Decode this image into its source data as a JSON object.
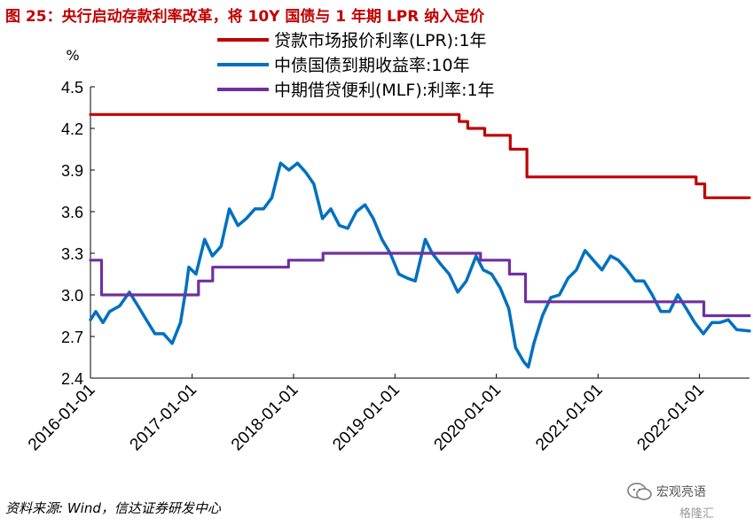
{
  "title": "图 25：央行启动存款利率改革，将 10Y 国债与 1 年期 LPR 纳入定价",
  "footer": "资料来源: Wind，信达证券研发中心",
  "watermark": {
    "line1": "宏观亮语",
    "line2": "格隆汇",
    "icon": "wechat-icon"
  },
  "chart_data": {
    "type": "line",
    "title": "",
    "xlabel": "",
    "ylabel": "%",
    "ylim": [
      2.4,
      4.5
    ],
    "yticks": [
      2.4,
      2.7,
      3.0,
      3.3,
      3.6,
      3.9,
      4.2,
      4.5
    ],
    "ytick_labels": [
      "2.4",
      "2.7",
      "3.0",
      "3.3",
      "3.6",
      "3.9",
      "4.2",
      "4.5"
    ],
    "xlim": [
      "2016-01-01",
      "2022-06-30"
    ],
    "xticks": [
      "2016-01-01",
      "2017-01-01",
      "2018-01-01",
      "2019-01-01",
      "2020-01-01",
      "2021-01-01",
      "2022-01-01"
    ],
    "grid": false,
    "legend_position": "top",
    "series": [
      {
        "name": "贷款市场报价利率(LPR):1年",
        "color": "#c00000",
        "step": true,
        "points": [
          [
            "2016-01-01",
            4.3
          ],
          [
            "2019-08-20",
            4.25
          ],
          [
            "2019-09-20",
            4.2
          ],
          [
            "2019-11-20",
            4.15
          ],
          [
            "2020-02-20",
            4.05
          ],
          [
            "2020-04-20",
            3.85
          ],
          [
            "2021-12-20",
            3.8
          ],
          [
            "2022-01-20",
            3.7
          ],
          [
            "2022-06-30",
            3.7
          ]
        ]
      },
      {
        "name": "中债国债到期收益率:10年",
        "color": "#0070c0",
        "step": false,
        "points": [
          [
            "2016-01-01",
            2.82
          ],
          [
            "2016-01-20",
            2.88
          ],
          [
            "2016-02-15",
            2.8
          ],
          [
            "2016-03-10",
            2.88
          ],
          [
            "2016-04-15",
            2.92
          ],
          [
            "2016-05-20",
            3.02
          ],
          [
            "2016-06-20",
            2.92
          ],
          [
            "2016-07-20",
            2.82
          ],
          [
            "2016-08-20",
            2.72
          ],
          [
            "2016-09-20",
            2.72
          ],
          [
            "2016-10-21",
            2.65
          ],
          [
            "2016-11-20",
            2.8
          ],
          [
            "2016-12-10",
            3.05
          ],
          [
            "2016-12-20",
            3.2
          ],
          [
            "2017-01-15",
            3.15
          ],
          [
            "2017-02-15",
            3.4
          ],
          [
            "2017-03-15",
            3.28
          ],
          [
            "2017-04-15",
            3.35
          ],
          [
            "2017-05-15",
            3.62
          ],
          [
            "2017-06-15",
            3.5
          ],
          [
            "2017-07-15",
            3.55
          ],
          [
            "2017-08-15",
            3.62
          ],
          [
            "2017-09-15",
            3.62
          ],
          [
            "2017-10-15",
            3.7
          ],
          [
            "2017-11-15",
            3.95
          ],
          [
            "2017-12-15",
            3.9
          ],
          [
            "2018-01-15",
            3.95
          ],
          [
            "2018-02-15",
            3.88
          ],
          [
            "2018-03-15",
            3.8
          ],
          [
            "2018-04-15",
            3.55
          ],
          [
            "2018-05-15",
            3.62
          ],
          [
            "2018-06-15",
            3.5
          ],
          [
            "2018-07-15",
            3.48
          ],
          [
            "2018-08-15",
            3.6
          ],
          [
            "2018-09-15",
            3.65
          ],
          [
            "2018-10-15",
            3.55
          ],
          [
            "2018-11-15",
            3.4
          ],
          [
            "2018-12-15",
            3.3
          ],
          [
            "2019-01-15",
            3.15
          ],
          [
            "2019-02-15",
            3.12
          ],
          [
            "2019-03-15",
            3.1
          ],
          [
            "2019-04-20",
            3.4
          ],
          [
            "2019-05-15",
            3.3
          ],
          [
            "2019-06-15",
            3.22
          ],
          [
            "2019-07-15",
            3.15
          ],
          [
            "2019-08-15",
            3.02
          ],
          [
            "2019-09-15",
            3.1
          ],
          [
            "2019-10-20",
            3.28
          ],
          [
            "2019-11-15",
            3.18
          ],
          [
            "2019-12-15",
            3.15
          ],
          [
            "2020-01-15",
            3.05
          ],
          [
            "2020-02-15",
            2.9
          ],
          [
            "2020-03-10",
            2.62
          ],
          [
            "2020-04-08",
            2.52
          ],
          [
            "2020-04-25",
            2.48
          ],
          [
            "2020-05-15",
            2.65
          ],
          [
            "2020-06-15",
            2.85
          ],
          [
            "2020-07-15",
            2.98
          ],
          [
            "2020-08-15",
            3.0
          ],
          [
            "2020-09-15",
            3.12
          ],
          [
            "2020-10-15",
            3.18
          ],
          [
            "2020-11-15",
            3.32
          ],
          [
            "2020-12-15",
            3.25
          ],
          [
            "2021-01-15",
            3.18
          ],
          [
            "2021-02-15",
            3.28
          ],
          [
            "2021-03-15",
            3.25
          ],
          [
            "2021-04-15",
            3.18
          ],
          [
            "2021-05-15",
            3.1
          ],
          [
            "2021-06-15",
            3.1
          ],
          [
            "2021-07-15",
            3.0
          ],
          [
            "2021-08-15",
            2.88
          ],
          [
            "2021-09-15",
            2.88
          ],
          [
            "2021-10-15",
            3.0
          ],
          [
            "2021-11-15",
            2.9
          ],
          [
            "2021-12-15",
            2.8
          ],
          [
            "2022-01-15",
            2.72
          ],
          [
            "2022-02-15",
            2.8
          ],
          [
            "2022-03-15",
            2.8
          ],
          [
            "2022-04-15",
            2.82
          ],
          [
            "2022-05-15",
            2.75
          ],
          [
            "2022-06-30",
            2.74
          ]
        ]
      },
      {
        "name": "中期借贷便利(MLF):利率:1年",
        "color": "#7030a0",
        "step": true,
        "points": [
          [
            "2016-01-01",
            3.25
          ],
          [
            "2016-02-10",
            3.0
          ],
          [
            "2017-01-24",
            3.1
          ],
          [
            "2017-03-16",
            3.2
          ],
          [
            "2017-12-14",
            3.25
          ],
          [
            "2018-04-17",
            3.3
          ],
          [
            "2019-11-05",
            3.25
          ],
          [
            "2020-02-17",
            3.15
          ],
          [
            "2020-04-15",
            2.95
          ],
          [
            "2022-01-17",
            2.85
          ],
          [
            "2022-06-30",
            2.85
          ]
        ]
      }
    ]
  }
}
